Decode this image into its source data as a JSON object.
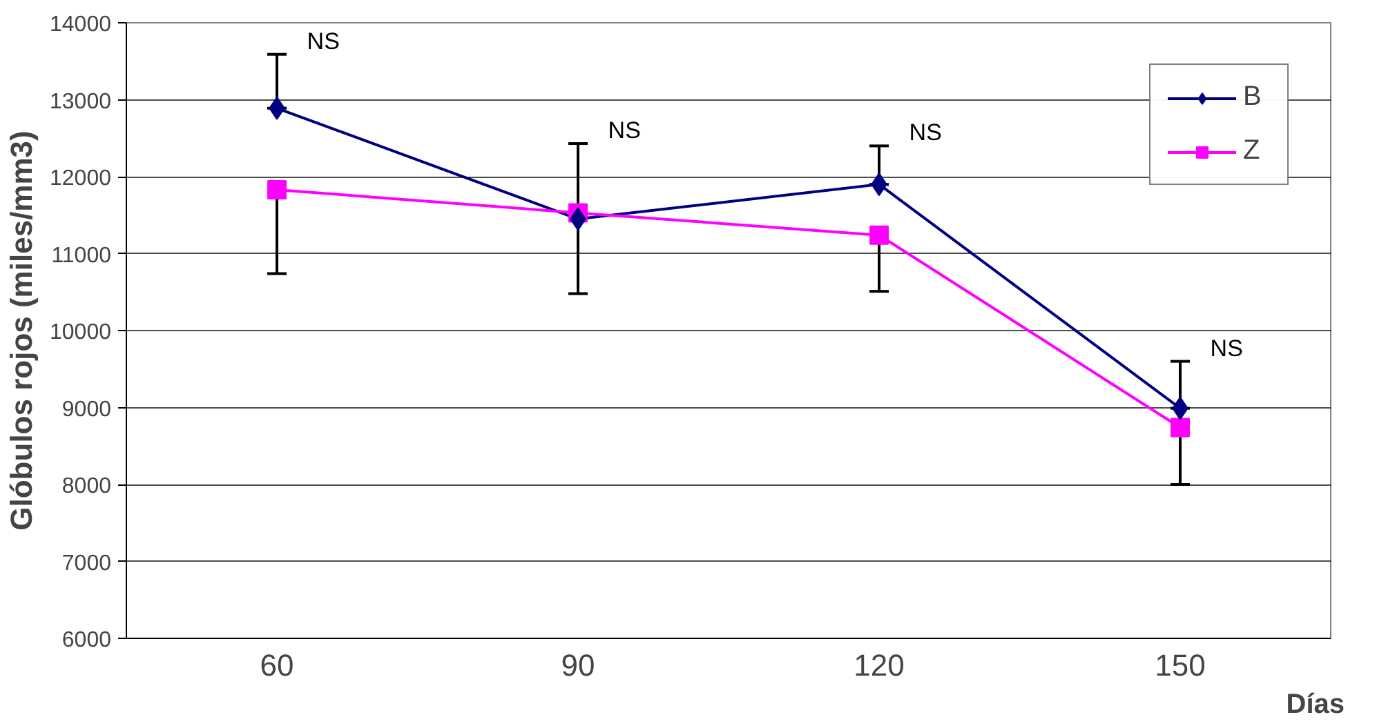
{
  "chart_data": {
    "type": "line",
    "ylabel": "Glóbulos rojos (miles/mm3)",
    "xlabel": "Días",
    "categories": [
      "60",
      "90",
      "120",
      "150"
    ],
    "series": [
      {
        "name": "B",
        "color": "#000080",
        "marker": "diamond",
        "values": [
          12890,
          11450,
          11900,
          8990
        ],
        "errors": [
          [
            12890,
            13590
          ],
          [
            11450,
            12430
          ],
          [
            11900,
            12400
          ],
          [
            8990,
            9600
          ]
        ]
      },
      {
        "name": "Z",
        "color": "#ff00ff",
        "marker": "square",
        "values": [
          11830,
          11530,
          11240,
          8740
        ],
        "errors": [
          [
            10740,
            11830
          ],
          [
            10480,
            11530
          ],
          [
            10510,
            11240
          ],
          [
            8000,
            8740
          ]
        ]
      }
    ],
    "ylim": [
      6000,
      14000
    ],
    "yticks": [
      6000,
      7000,
      8000,
      9000,
      10000,
      11000,
      12000,
      13000,
      14000
    ],
    "grid": "y",
    "legend": "top right",
    "line_style": "solid",
    "annotations": [
      {
        "text": "NS",
        "x": "60",
        "y": 13590
      },
      {
        "text": "NS",
        "x": "90",
        "y": 12430
      },
      {
        "text": "NS",
        "x": "120",
        "y": 12400
      },
      {
        "text": "NS",
        "x": "150",
        "y": 9600
      }
    ]
  }
}
